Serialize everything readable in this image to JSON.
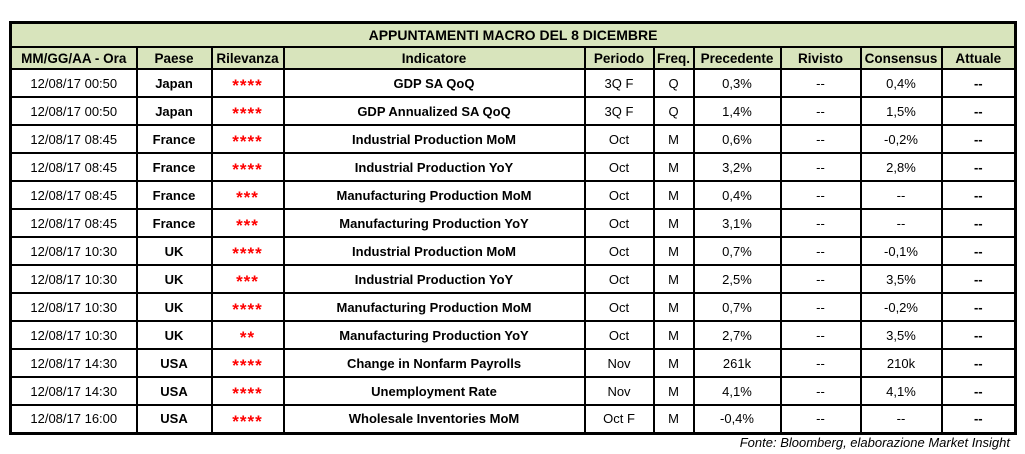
{
  "title": "APPUNTAMENTI MACRO DEL 8 DICEMBRE",
  "columns": [
    "MM/GG/AA - Ora",
    "Paese",
    "Rilevanza",
    "Indicatore",
    "Periodo",
    "Freq.",
    "Precedente",
    "Rivisto",
    "Consensus",
    "Attuale"
  ],
  "rows": [
    {
      "datetime": "12/08/17 00:50",
      "country": "Japan",
      "stars": "****",
      "indicator": "GDP SA QoQ",
      "period": "3Q F",
      "freq": "Q",
      "previous": "0,3%",
      "revised": "--",
      "consensus": "0,4%",
      "actual": "--"
    },
    {
      "datetime": "12/08/17 00:50",
      "country": "Japan",
      "stars": "****",
      "indicator": "GDP Annualized SA QoQ",
      "period": "3Q F",
      "freq": "Q",
      "previous": "1,4%",
      "revised": "--",
      "consensus": "1,5%",
      "actual": "--"
    },
    {
      "datetime": "12/08/17 08:45",
      "country": "France",
      "stars": "****",
      "indicator": "Industrial Production MoM",
      "period": "Oct",
      "freq": "M",
      "previous": "0,6%",
      "revised": "--",
      "consensus": "-0,2%",
      "actual": "--"
    },
    {
      "datetime": "12/08/17 08:45",
      "country": "France",
      "stars": "****",
      "indicator": "Industrial Production YoY",
      "period": "Oct",
      "freq": "M",
      "previous": "3,2%",
      "revised": "--",
      "consensus": "2,8%",
      "actual": "--"
    },
    {
      "datetime": "12/08/17 08:45",
      "country": "France",
      "stars": "***",
      "indicator": "Manufacturing Production MoM",
      "period": "Oct",
      "freq": "M",
      "previous": "0,4%",
      "revised": "--",
      "consensus": "--",
      "actual": "--"
    },
    {
      "datetime": "12/08/17 08:45",
      "country": "France",
      "stars": "***",
      "indicator": "Manufacturing Production YoY",
      "period": "Oct",
      "freq": "M",
      "previous": "3,1%",
      "revised": "--",
      "consensus": "--",
      "actual": "--"
    },
    {
      "datetime": "12/08/17 10:30",
      "country": "UK",
      "stars": "****",
      "indicator": "Industrial Production MoM",
      "period": "Oct",
      "freq": "M",
      "previous": "0,7%",
      "revised": "--",
      "consensus": "-0,1%",
      "actual": "--"
    },
    {
      "datetime": "12/08/17 10:30",
      "country": "UK",
      "stars": "***",
      "indicator": "Industrial Production YoY",
      "period": "Oct",
      "freq": "M",
      "previous": "2,5%",
      "revised": "--",
      "consensus": "3,5%",
      "actual": "--"
    },
    {
      "datetime": "12/08/17 10:30",
      "country": "UK",
      "stars": "****",
      "indicator": "Manufacturing Production MoM",
      "period": "Oct",
      "freq": "M",
      "previous": "0,7%",
      "revised": "--",
      "consensus": "-0,2%",
      "actual": "--"
    },
    {
      "datetime": "12/08/17 10:30",
      "country": "UK",
      "stars": "**",
      "indicator": "Manufacturing Production YoY",
      "period": "Oct",
      "freq": "M",
      "previous": "2,7%",
      "revised": "--",
      "consensus": "3,5%",
      "actual": "--"
    },
    {
      "datetime": "12/08/17 14:30",
      "country": "USA",
      "stars": "****",
      "indicator": "Change in Nonfarm Payrolls",
      "period": "Nov",
      "freq": "M",
      "previous": "261k",
      "revised": "--",
      "consensus": "210k",
      "actual": "--"
    },
    {
      "datetime": "12/08/17 14:30",
      "country": "USA",
      "stars": "****",
      "indicator": "Unemployment Rate",
      "period": "Nov",
      "freq": "M",
      "previous": "4,1%",
      "revised": "--",
      "consensus": "4,1%",
      "actual": "--"
    },
    {
      "datetime": "12/08/17 16:00",
      "country": "USA",
      "stars": "****",
      "indicator": "Wholesale Inventories MoM",
      "period": "Oct F",
      "freq": "M",
      "previous": "-0,4%",
      "revised": "--",
      "consensus": "--",
      "actual": "--"
    }
  ],
  "footer": "Fonte: Bloomberg, elaborazione Market Insight",
  "colors": {
    "header_bg": "#d8e4bc",
    "stars_red": "#ff0000",
    "border": "#000000"
  }
}
